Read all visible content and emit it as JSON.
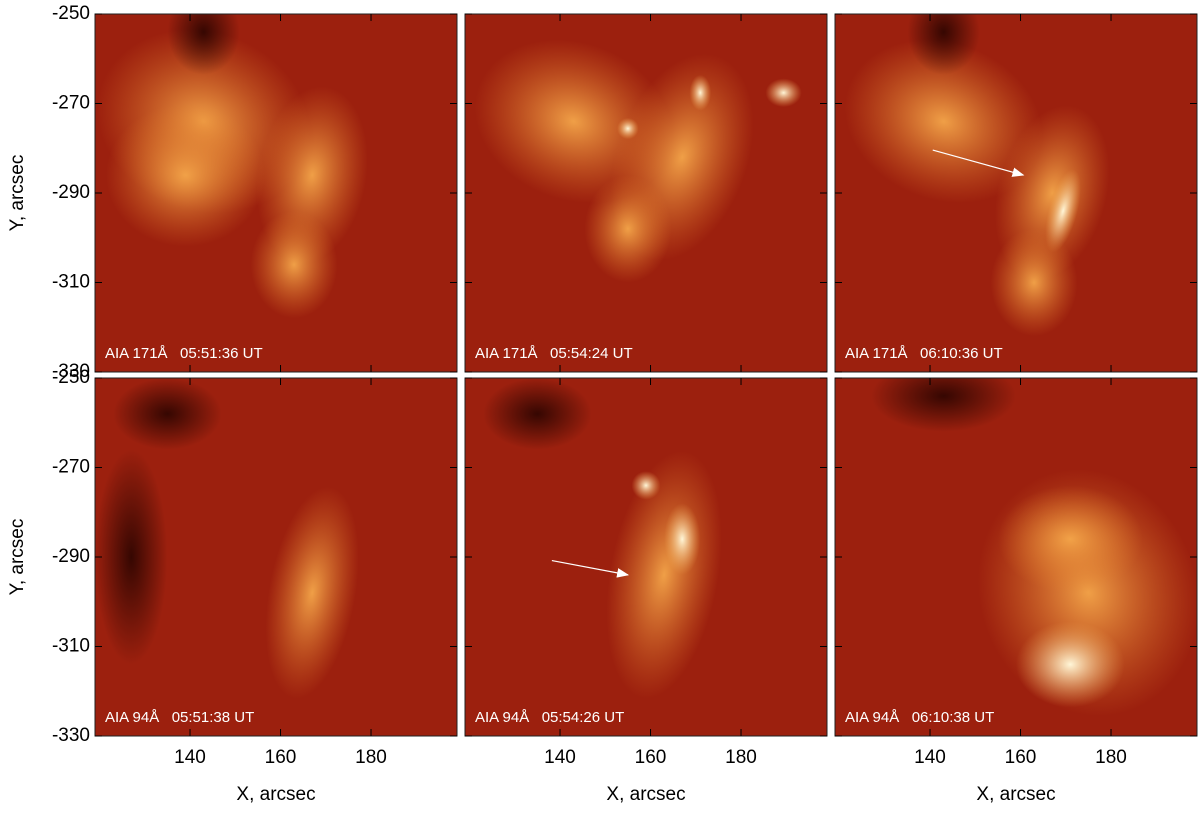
{
  "figure": {
    "panels": [
      {
        "label": "AIA 171Å   05:51:36 UT"
      },
      {
        "label": "AIA 171Å   05:54:24 UT"
      },
      {
        "label": "AIA 171Å   06:10:36 UT"
      },
      {
        "label": "AIA 94Å   05:51:38 UT"
      },
      {
        "label": "AIA 94Å   05:54:26 UT"
      },
      {
        "label": "AIA 94Å   06:10:38 UT"
      }
    ],
    "x_label": "X, arcsec",
    "y_label": "Y, arcsec",
    "xlim": [
      119,
      199
    ],
    "ylim": [
      -330,
      -250
    ],
    "xticks": [
      140,
      160,
      180
    ],
    "yticks": [
      -250,
      -270,
      -290,
      -310,
      -330
    ]
  }
}
